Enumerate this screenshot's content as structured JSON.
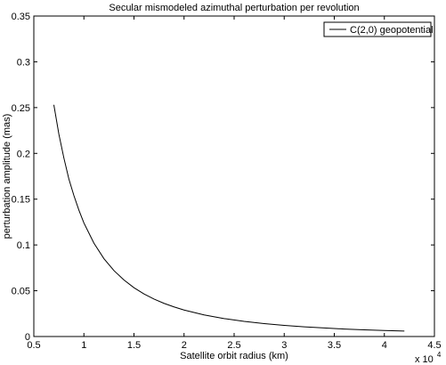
{
  "chart_data": {
    "type": "line",
    "title": "Secular mismodeled azimuthal perturbation per revolution",
    "xlabel": "Satellite orbit radius (km)",
    "ylabel": "perturbation amplitude  (mas)",
    "x_multiplier_base": "x 10",
    "x_multiplier_exponent": "4",
    "xlim": [
      0.5,
      4.5
    ],
    "ylim": [
      0,
      0.35
    ],
    "x_ticks": [
      "0.5",
      "1",
      "1.5",
      "2",
      "2.5",
      "3",
      "3.5",
      "4",
      "4.5"
    ],
    "y_ticks": [
      "0",
      "0.05",
      "0.1",
      "0.15",
      "0.2",
      "0.25",
      "0.3",
      "0.35"
    ],
    "grid": false,
    "legend_position": "top-right",
    "series": [
      {
        "name": "C(2,0) geopotential",
        "color": "#000000",
        "x": [
          0.7,
          0.75,
          0.8,
          0.85,
          0.9,
          0.95,
          1.0,
          1.1,
          1.2,
          1.3,
          1.4,
          1.5,
          1.6,
          1.7,
          1.8,
          1.9,
          2.0,
          2.2,
          2.4,
          2.6,
          2.8,
          3.0,
          3.2,
          3.4,
          3.6,
          3.8,
          4.0,
          4.2
        ],
        "y": [
          0.253,
          0.221,
          0.195,
          0.172,
          0.154,
          0.138,
          0.124,
          0.102,
          0.085,
          0.072,
          0.0617,
          0.0533,
          0.0465,
          0.0409,
          0.0362,
          0.0323,
          0.0289,
          0.0236,
          0.0196,
          0.0165,
          0.0141,
          0.0121,
          0.0106,
          0.0093,
          0.0082,
          0.0073,
          0.0066,
          0.0059
        ]
      }
    ]
  }
}
